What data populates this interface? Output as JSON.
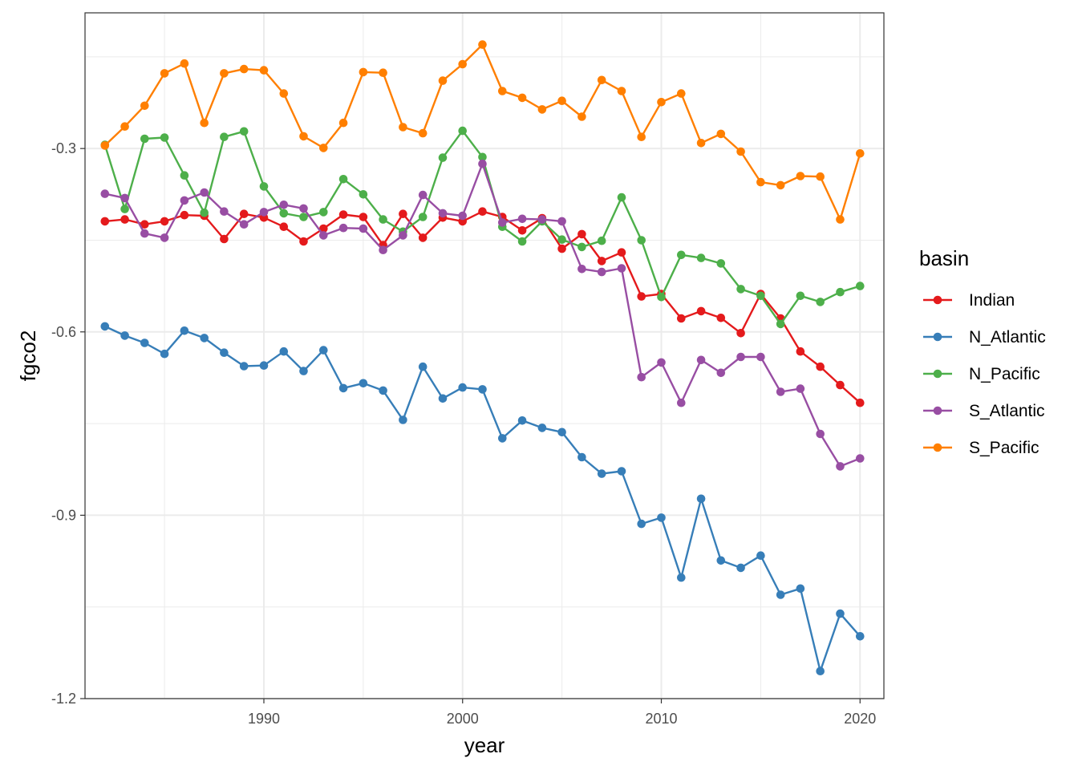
{
  "chart_data": {
    "type": "line",
    "xlabel": "year",
    "ylabel": "fgco2",
    "xlim": [
      1981.0,
      2021.2
    ],
    "ylim": [
      -1.2,
      -0.078
    ],
    "x_ticks": [
      1990,
      2000,
      2010,
      2020
    ],
    "x_minor": [
      1985,
      1995,
      2005,
      2015
    ],
    "y_ticks": [
      -1.2,
      -0.9,
      -0.6,
      -0.3
    ],
    "y_tick_labels": [
      "-1.2",
      "-0.9",
      "-0.6",
      "-0.3"
    ],
    "y_minor": [
      -1.05,
      -0.75,
      -0.45,
      -0.15
    ],
    "grid": true,
    "markers": true,
    "legend": {
      "title": "basin",
      "position": "right"
    },
    "x": [
      1982,
      1983,
      1984,
      1985,
      1986,
      1987,
      1988,
      1989,
      1990,
      1991,
      1992,
      1993,
      1994,
      1995,
      1996,
      1997,
      1998,
      1999,
      2000,
      2001,
      2002,
      2003,
      2004,
      2005,
      2006,
      2007,
      2008,
      2009,
      2010,
      2011,
      2012,
      2013,
      2014,
      2015,
      2016,
      2017,
      2018,
      2019,
      2020
    ],
    "series": [
      {
        "name": "Indian",
        "color": "#e41a1c",
        "values": [
          -0.419,
          -0.416,
          -0.424,
          -0.419,
          -0.409,
          -0.41,
          -0.448,
          -0.407,
          -0.413,
          -0.428,
          -0.452,
          -0.431,
          -0.408,
          -0.412,
          -0.458,
          -0.407,
          -0.446,
          -0.413,
          -0.419,
          -0.403,
          -0.412,
          -0.434,
          -0.414,
          -0.464,
          -0.44,
          -0.484,
          -0.47,
          -0.542,
          -0.538,
          -0.578,
          -0.566,
          -0.577,
          -0.602,
          -0.538,
          -0.578,
          -0.632,
          -0.657,
          -0.687,
          -0.716
        ]
      },
      {
        "name": "N_Atlantic",
        "color": "#377eb8",
        "values": [
          -0.591,
          -0.606,
          -0.618,
          -0.636,
          -0.598,
          -0.61,
          -0.634,
          -0.656,
          -0.655,
          -0.632,
          -0.664,
          -0.63,
          -0.692,
          -0.684,
          -0.696,
          -0.744,
          -0.657,
          -0.709,
          -0.691,
          -0.694,
          -0.774,
          -0.745,
          -0.757,
          -0.764,
          -0.805,
          -0.832,
          -0.828,
          -0.914,
          -0.904,
          -1.002,
          -0.873,
          -0.974,
          -0.986,
          -0.966,
          -1.03,
          -1.02,
          -1.155,
          -1.061,
          -1.098
        ]
      },
      {
        "name": "N_Pacific",
        "color": "#4daf4a",
        "values": [
          -0.294,
          -0.399,
          -0.284,
          -0.282,
          -0.344,
          -0.405,
          -0.281,
          -0.272,
          -0.362,
          -0.406,
          -0.412,
          -0.404,
          -0.35,
          -0.375,
          -0.416,
          -0.436,
          -0.412,
          -0.315,
          -0.271,
          -0.314,
          -0.428,
          -0.452,
          -0.419,
          -0.449,
          -0.461,
          -0.451,
          -0.38,
          -0.45,
          -0.543,
          -0.474,
          -0.479,
          -0.488,
          -0.53,
          -0.541,
          -0.587,
          -0.541,
          -0.551,
          -0.535,
          -0.525
        ]
      },
      {
        "name": "S_Atlantic",
        "color": "#984ea3",
        "values": [
          -0.374,
          -0.381,
          -0.439,
          -0.446,
          -0.385,
          -0.372,
          -0.403,
          -0.424,
          -0.404,
          -0.392,
          -0.398,
          -0.442,
          -0.43,
          -0.431,
          -0.466,
          -0.442,
          -0.376,
          -0.406,
          -0.41,
          -0.325,
          -0.421,
          -0.415,
          -0.416,
          -0.419,
          -0.497,
          -0.502,
          -0.496,
          -0.674,
          -0.65,
          -0.716,
          -0.646,
          -0.667,
          -0.641,
          -0.641,
          -0.698,
          -0.693,
          -0.767,
          -0.82,
          -0.807
        ]
      },
      {
        "name": "S_Pacific",
        "color": "#ff7f00",
        "values": [
          -0.295,
          -0.264,
          -0.23,
          -0.177,
          -0.161,
          -0.258,
          -0.177,
          -0.17,
          -0.172,
          -0.21,
          -0.28,
          -0.299,
          -0.258,
          -0.175,
          -0.176,
          -0.265,
          -0.275,
          -0.189,
          -0.162,
          -0.13,
          -0.206,
          -0.217,
          -0.236,
          -0.222,
          -0.248,
          -0.188,
          -0.206,
          -0.281,
          -0.224,
          -0.21,
          -0.291,
          -0.276,
          -0.305,
          -0.355,
          -0.36,
          -0.345,
          -0.346,
          -0.416,
          -0.308
        ]
      }
    ]
  }
}
